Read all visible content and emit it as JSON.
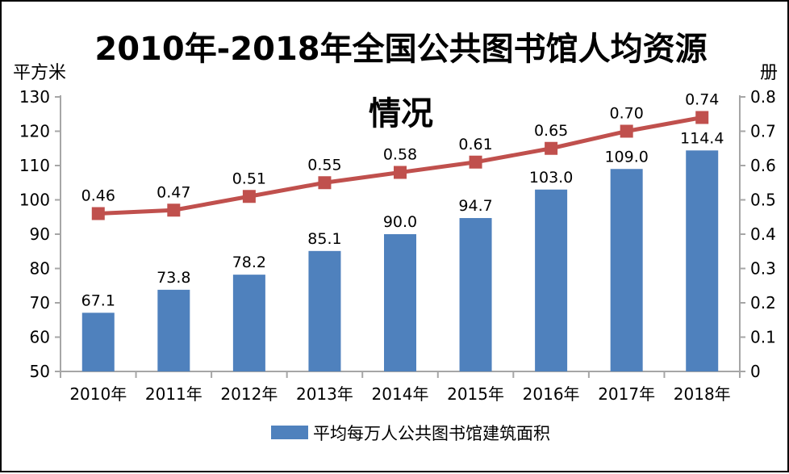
{
  "title": {
    "line1": "2010年-2018年全国公共图书馆人均资源",
    "line2": "情况"
  },
  "legend": {
    "bar_series": "平均每万人公共图书馆建筑面积"
  },
  "colors": {
    "bar": "#4F81BD",
    "line": "#C0504D",
    "axis": "#A6A6A6",
    "text": "#000000",
    "background": "#FFFFFF",
    "border": "#000000"
  },
  "chart_data": {
    "type": "bar",
    "subtype": "combo-bar-line",
    "title": "2010年-2018年全国公共图书馆人均资源情况",
    "categories": [
      "2010年",
      "2011年",
      "2012年",
      "2013年",
      "2014年",
      "2015年",
      "2016年",
      "2017年",
      "2018年"
    ],
    "series": [
      {
        "name": "平均每万人公共图书馆建筑面积",
        "type": "bar",
        "axis": "left",
        "color": "#4F81BD",
        "values": [
          67.1,
          73.8,
          78.2,
          85.1,
          90.0,
          94.7,
          103.0,
          109.0,
          114.4
        ],
        "labels": [
          "67.1",
          "73.8",
          "78.2",
          "85.1",
          "90.0",
          "94.7",
          "103.0",
          "109.0",
          "114.4"
        ]
      },
      {
        "name": "",
        "type": "line",
        "axis": "right",
        "color": "#C0504D",
        "marker": "square",
        "values": [
          0.46,
          0.47,
          0.51,
          0.55,
          0.58,
          0.61,
          0.65,
          0.7,
          0.74
        ],
        "labels": [
          "0.46",
          "0.47",
          "0.51",
          "0.55",
          "0.58",
          "0.61",
          "0.65",
          "0.70",
          "0.74"
        ]
      }
    ],
    "left_axis": {
      "label": "平方米",
      "min": 50,
      "max": 130,
      "step": 10,
      "tick_labels": [
        "130",
        "120",
        "110",
        "100",
        "90",
        "80",
        "70",
        "60",
        "50"
      ]
    },
    "right_axis": {
      "label": "册",
      "min": 0,
      "max": 0.8,
      "step": 0.1,
      "tick_labels": [
        "0.8",
        "0.7",
        "0.6",
        "0.5",
        "0.4",
        "0.3",
        "0.2",
        "0.1",
        "0"
      ]
    },
    "grid": false,
    "legend_position": "bottom"
  }
}
